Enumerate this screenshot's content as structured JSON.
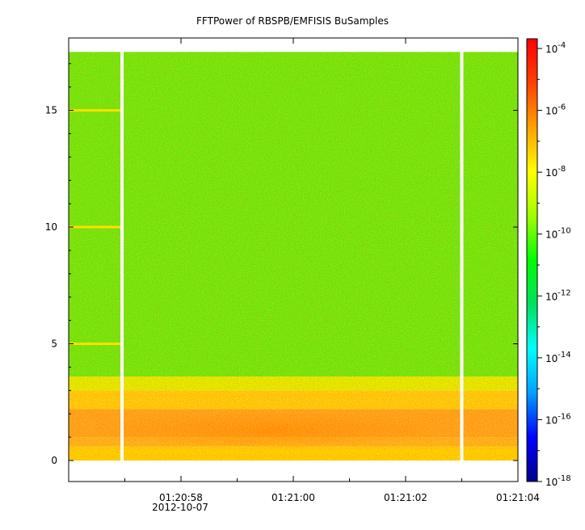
{
  "chart_data": {
    "type": "heatmap",
    "title": "FFTPower of RBSPB/EMFISIS  BuSamples",
    "xlabel": "",
    "ylabel": "",
    "x_time_range": [
      "01:20:56.1",
      "01:21:04.1"
    ],
    "x_ticks": [
      {
        "label": "01:20:58",
        "t": 2.0
      },
      {
        "label": "01:21:00",
        "t": 4.0
      },
      {
        "label": "01:21:02",
        "t": 6.0
      },
      {
        "label": "01:21:04",
        "t": 8.0
      }
    ],
    "x_minor_ticks": [
      1.0,
      3.0,
      5.0,
      7.0
    ],
    "date_label": "2012-10-07",
    "ylim": [
      -0.9,
      18.1
    ],
    "y_ticks": [
      0,
      5,
      10,
      15
    ],
    "data_y_range": [
      0,
      17.5
    ],
    "colorbar": {
      "scale": "log",
      "range_exponents": [
        -18,
        -4
      ],
      "tick_base": "10",
      "tick_exponents": [
        "-4",
        "-6",
        "-8",
        "-10",
        "-12",
        "-14",
        "-16",
        "-18"
      ],
      "colors": [
        "#00008f",
        "#0000ff",
        "#00a0ff",
        "#00ffff",
        "#00e060",
        "#00ff00",
        "#a0ff00",
        "#ffff00",
        "#ffa000",
        "#ff4000",
        "#ff0000"
      ]
    },
    "gaps_t": [
      0.95,
      7.0
    ],
    "rows": [
      {
        "y_from": 0,
        "y_to": 0.6,
        "color": "#ffd000"
      },
      {
        "y_from": 0.6,
        "y_to": 1.0,
        "color": "#ffb020"
      },
      {
        "y_from": 1.0,
        "y_to": 2.2,
        "color": "#ffa020"
      },
      {
        "y_from": 2.2,
        "y_to": 3.0,
        "color": "#ffcc10"
      },
      {
        "y_from": 3.0,
        "y_to": 3.6,
        "color": "#e0f000"
      },
      {
        "y_from": 3.6,
        "y_to": 17.5,
        "color": "#60ee10"
      }
    ],
    "line_features_y": [
      5,
      10,
      15
    ]
  }
}
